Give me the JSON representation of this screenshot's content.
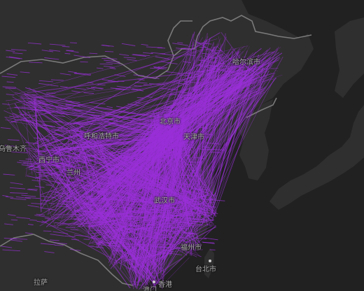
{
  "map": {
    "theme": "dark",
    "colors": {
      "ocean": "#212121",
      "land": "#2f2f2f",
      "border": "#7a7a7a",
      "flow": "#9a30d8",
      "label": "#a8a8a8"
    },
    "cities": [
      {
        "name": "哈尔滨市",
        "key": "harbin"
      },
      {
        "name": "北京市",
        "key": "beijing"
      },
      {
        "name": "天津市",
        "key": "tianjin"
      },
      {
        "name": "呼和浩特市",
        "key": "hohhot"
      },
      {
        "name": "西宁市",
        "key": "xining"
      },
      {
        "name": "兰州",
        "key": "lanzhou"
      },
      {
        "name": "武汉市",
        "key": "wuhan"
      },
      {
        "name": "福州市",
        "key": "fuzhou"
      },
      {
        "name": "香港",
        "key": "hongkong"
      },
      {
        "name": "澳门",
        "key": "macau"
      },
      {
        "name": "台北市",
        "key": "taipei"
      }
    ],
    "edge_labels": [
      {
        "name": "乌鲁木齐",
        "key": "urumqi-partial"
      },
      {
        "name": "拉萨",
        "key": "lhasa-partial"
      }
    ]
  }
}
